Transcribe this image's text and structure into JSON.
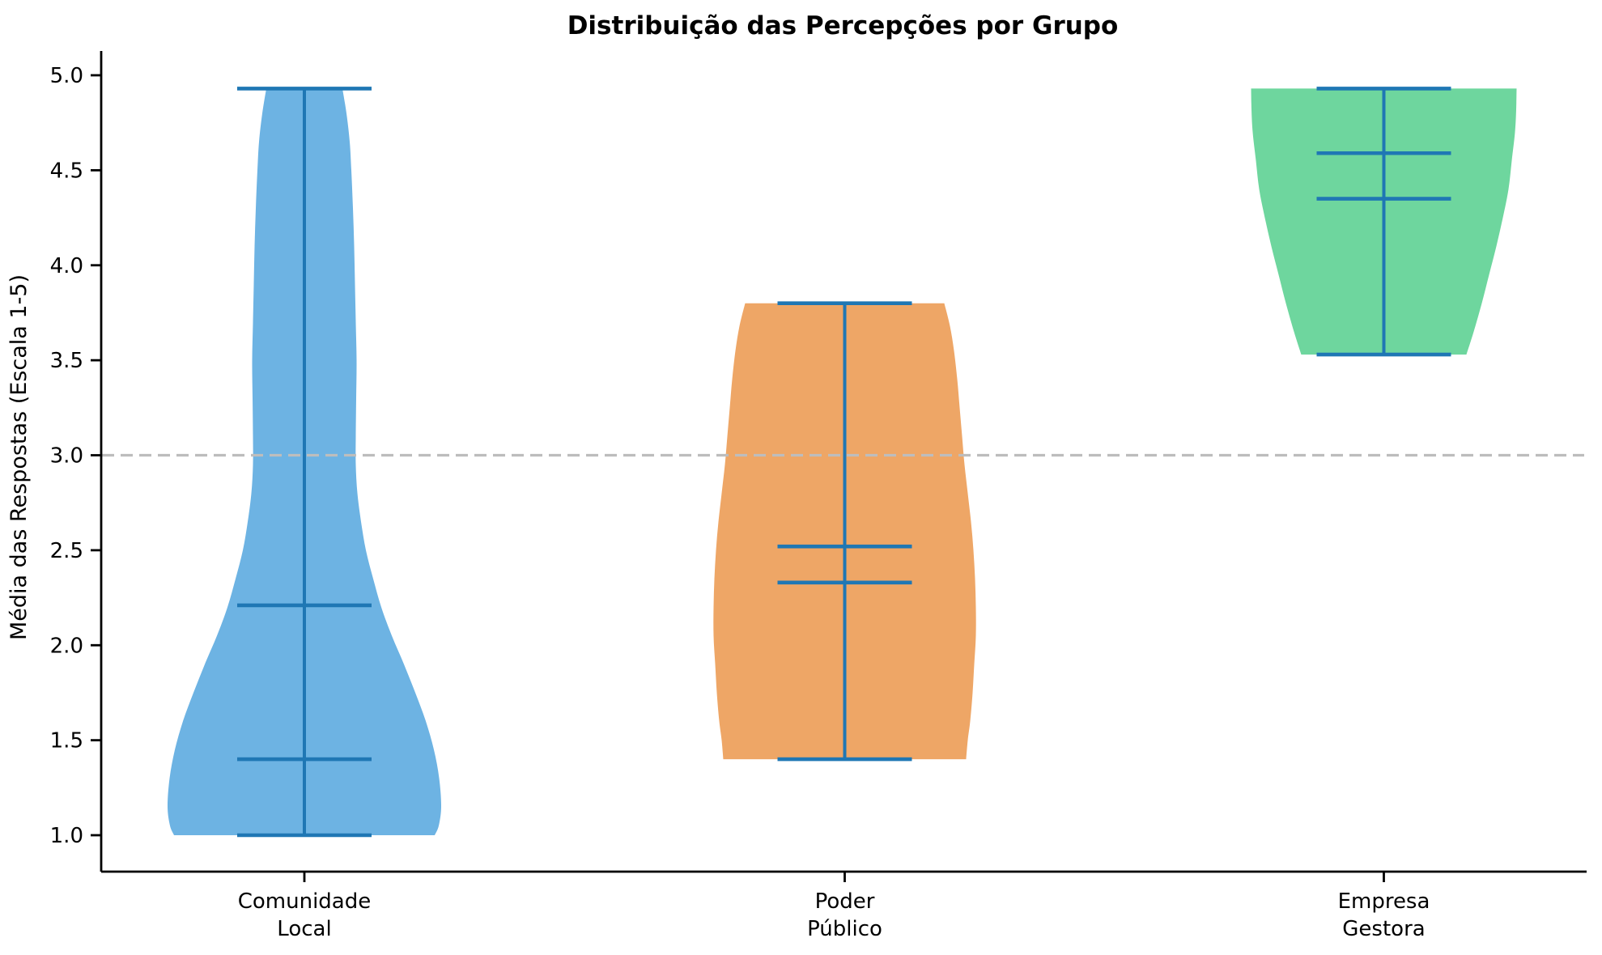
{
  "chart_data": {
    "type": "violin",
    "title": "Distribuição das Percepções por Grupo",
    "ylabel": "Média das Respostas (Escala 1-5)",
    "xlabel": "",
    "yticks": [
      1.0,
      1.5,
      2.0,
      2.5,
      3.0,
      3.5,
      4.0,
      4.5,
      5.0
    ],
    "ylim": [
      0.81,
      5.13
    ],
    "grid": false,
    "legend": false,
    "reference_line": {
      "y": 3.0,
      "style": "dashed",
      "color": "#BDBDBD"
    },
    "stat_line_color": "#1F77B4",
    "groups": [
      {
        "id": "comunidade-local",
        "label_lines": [
          "Comunidade",
          "Local"
        ],
        "color": "#6DB3E3",
        "min": 1.0,
        "max": 4.93,
        "inner_lines": [
          2.21,
          1.4
        ],
        "profile": [
          [
            4.93,
            47
          ],
          [
            4.8,
            52
          ],
          [
            4.65,
            56
          ],
          [
            4.5,
            58
          ],
          [
            4.3,
            60
          ],
          [
            4.1,
            61.5
          ],
          [
            3.9,
            62.5
          ],
          [
            3.7,
            63.5
          ],
          [
            3.5,
            64.5
          ],
          [
            3.3,
            64
          ],
          [
            3.1,
            63.5
          ],
          [
            2.95,
            63.5
          ],
          [
            2.8,
            65.5
          ],
          [
            2.65,
            70
          ],
          [
            2.5,
            76
          ],
          [
            2.35,
            85
          ],
          [
            2.2,
            95
          ],
          [
            2.05,
            108
          ],
          [
            1.9,
            123
          ],
          [
            1.75,
            137
          ],
          [
            1.6,
            150
          ],
          [
            1.45,
            160
          ],
          [
            1.3,
            166.5
          ],
          [
            1.15,
            169
          ],
          [
            1.05,
            166
          ],
          [
            1.0,
            161
          ]
        ]
      },
      {
        "id": "poder-publico",
        "label_lines": [
          "Poder",
          "Público"
        ],
        "color": "#EEA666",
        "min": 1.4,
        "max": 3.8,
        "inner_lines": [
          2.52,
          2.33
        ],
        "profile": [
          [
            3.8,
            123
          ],
          [
            3.68,
            130
          ],
          [
            3.55,
            135
          ],
          [
            3.4,
            139
          ],
          [
            3.25,
            142
          ],
          [
            3.1,
            145
          ],
          [
            2.95,
            148
          ],
          [
            2.8,
            152
          ],
          [
            2.65,
            156
          ],
          [
            2.5,
            159
          ],
          [
            2.35,
            161
          ],
          [
            2.2,
            162
          ],
          [
            2.05,
            162
          ],
          [
            1.9,
            160
          ],
          [
            1.75,
            158
          ],
          [
            1.6,
            155
          ],
          [
            1.5,
            152
          ],
          [
            1.4,
            150
          ]
        ]
      },
      {
        "id": "empresa-gestora",
        "label_lines": [
          "Empresa",
          "Gestora"
        ],
        "color": "#6ED69E",
        "min": 3.53,
        "max": 4.93,
        "inner_lines": [
          4.59,
          4.35
        ],
        "profile": [
          [
            4.93,
            164
          ],
          [
            4.82,
            163.5
          ],
          [
            4.7,
            162
          ],
          [
            4.55,
            158
          ],
          [
            4.4,
            154
          ],
          [
            4.25,
            147
          ],
          [
            4.1,
            139
          ],
          [
            3.95,
            130
          ],
          [
            3.8,
            121
          ],
          [
            3.65,
            111
          ],
          [
            3.53,
            102
          ]
        ]
      }
    ]
  }
}
